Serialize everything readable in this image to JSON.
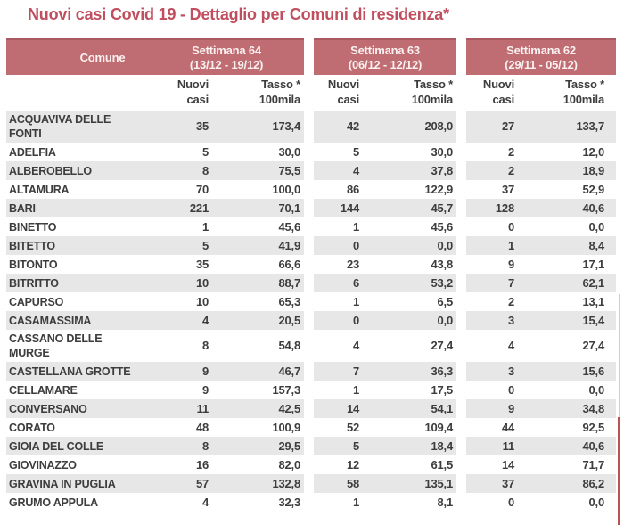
{
  "page": {
    "title": "Nuovi casi Covid 19 - Dettaglio per Comuni di residenza*"
  },
  "colors": {
    "header_band": "#bf6d72",
    "header_band_top_border": "#aa5a60",
    "title_text": "#c14e5e",
    "row_stripe": "#e8e7e7",
    "body_text": "#3d3d3d",
    "scrollbar_track": "#cfcfcf",
    "scrollbar_thumb": "#b95456"
  },
  "table": {
    "comune_header": "Comune",
    "weeks": [
      {
        "title": "Settimana 64",
        "dates": "(13/12 - 19/12)"
      },
      {
        "title": "Settimana 63",
        "dates": "(06/12 - 12/12)"
      },
      {
        "title": "Settimana 62",
        "dates": "(29/11 - 05/12)"
      }
    ],
    "sub_headers": {
      "nuovi": [
        "Nuovi",
        "casi"
      ],
      "tasso": [
        "Tasso *",
        "100mila"
      ]
    },
    "rows": [
      {
        "comune": "ACQUAVIVA DELLE FONTI",
        "values": [
          "35",
          "173,4",
          "42",
          "208,0",
          "27",
          "133,7"
        ]
      },
      {
        "comune": "ADELFIA",
        "values": [
          "5",
          "30,0",
          "5",
          "30,0",
          "2",
          "12,0"
        ]
      },
      {
        "comune": "ALBEROBELLO",
        "values": [
          "8",
          "75,5",
          "4",
          "37,8",
          "2",
          "18,9"
        ]
      },
      {
        "comune": "ALTAMURA",
        "values": [
          "70",
          "100,0",
          "86",
          "122,9",
          "37",
          "52,9"
        ]
      },
      {
        "comune": "BARI",
        "values": [
          "221",
          "70,1",
          "144",
          "45,7",
          "128",
          "40,6"
        ]
      },
      {
        "comune": "BINETTO",
        "values": [
          "1",
          "45,6",
          "1",
          "45,6",
          "0",
          "0,0"
        ]
      },
      {
        "comune": "BITETTO",
        "values": [
          "5",
          "41,9",
          "0",
          "0,0",
          "1",
          "8,4"
        ]
      },
      {
        "comune": "BITONTO",
        "values": [
          "35",
          "66,6",
          "23",
          "43,8",
          "9",
          "17,1"
        ]
      },
      {
        "comune": "BITRITTO",
        "values": [
          "10",
          "88,7",
          "6",
          "53,2",
          "7",
          "62,1"
        ]
      },
      {
        "comune": "CAPURSO",
        "values": [
          "10",
          "65,3",
          "1",
          "6,5",
          "2",
          "13,1"
        ]
      },
      {
        "comune": "CASAMASSIMA",
        "values": [
          "4",
          "20,5",
          "0",
          "0,0",
          "3",
          "15,4"
        ]
      },
      {
        "comune": "CASSANO DELLE MURGE",
        "values": [
          "8",
          "54,8",
          "4",
          "27,4",
          "4",
          "27,4"
        ]
      },
      {
        "comune": "CASTELLANA GROTTE",
        "values": [
          "9",
          "46,7",
          "7",
          "36,3",
          "3",
          "15,6"
        ]
      },
      {
        "comune": "CELLAMARE",
        "values": [
          "9",
          "157,3",
          "1",
          "17,5",
          "0",
          "0,0"
        ]
      },
      {
        "comune": "CONVERSANO",
        "values": [
          "11",
          "42,5",
          "14",
          "54,1",
          "9",
          "34,8"
        ]
      },
      {
        "comune": "CORATO",
        "values": [
          "48",
          "100,9",
          "52",
          "109,4",
          "44",
          "92,5"
        ]
      },
      {
        "comune": "GIOIA DEL COLLE",
        "values": [
          "8",
          "29,5",
          "5",
          "18,4",
          "11",
          "40,6"
        ]
      },
      {
        "comune": "GIOVINAZZO",
        "values": [
          "16",
          "82,0",
          "12",
          "61,5",
          "14",
          "71,7"
        ]
      },
      {
        "comune": "GRAVINA IN PUGLIA",
        "values": [
          "57",
          "132,8",
          "58",
          "135,1",
          "37",
          "86,2"
        ]
      },
      {
        "comune": "GRUMO APPULA",
        "values": [
          "4",
          "32,3",
          "1",
          "8,1",
          "0",
          "0,0"
        ]
      }
    ]
  }
}
